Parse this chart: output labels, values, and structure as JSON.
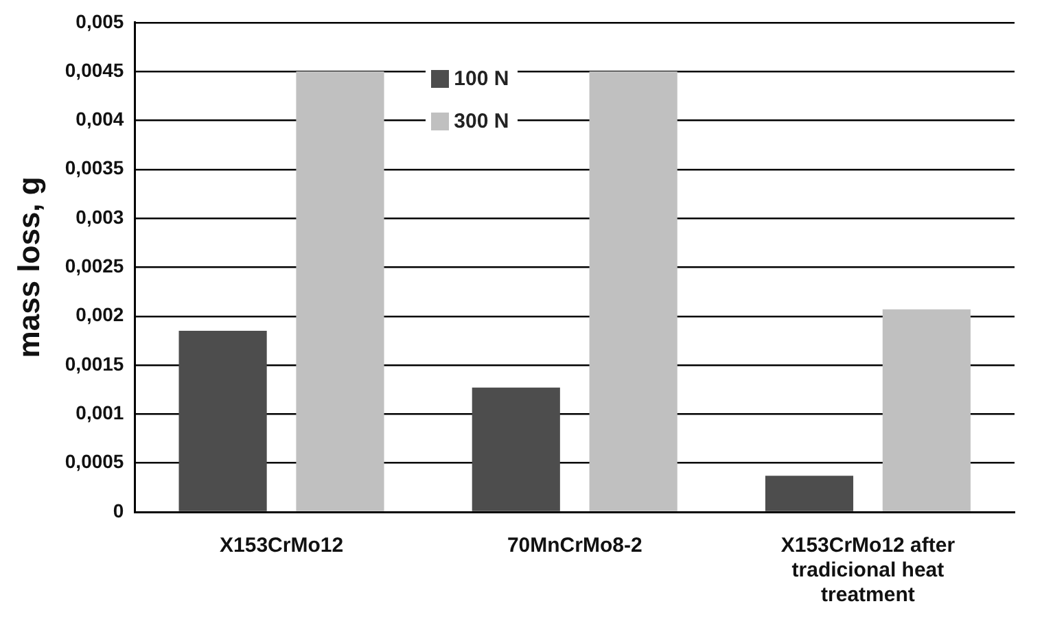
{
  "chart_data": {
    "type": "bar",
    "ylabel": "mass loss, g",
    "categories": [
      "X153CrMo12",
      "70MnCrMo8-2",
      "X153CrMo12 after tradicional heat treatment"
    ],
    "series": [
      {
        "name": "100 N",
        "color": "#4d4d4d",
        "values": [
          0.00185,
          0.00127,
          0.00037
        ]
      },
      {
        "name": "300 N",
        "color": "#c0c0c0",
        "values": [
          0.0045,
          0.0045,
          0.00207
        ]
      }
    ],
    "ylim": [
      0,
      0.005
    ],
    "yticks": [
      {
        "value": 0,
        "label": "0"
      },
      {
        "value": 0.0005,
        "label": "0,0005"
      },
      {
        "value": 0.001,
        "label": "0,001"
      },
      {
        "value": 0.0015,
        "label": "0,0015"
      },
      {
        "value": 0.002,
        "label": "0,002"
      },
      {
        "value": 0.0025,
        "label": "0,0025"
      },
      {
        "value": 0.003,
        "label": "0,003"
      },
      {
        "value": 0.0035,
        "label": "0,0035"
      },
      {
        "value": 0.004,
        "label": "0,004"
      },
      {
        "value": 0.0045,
        "label": "0,0045"
      },
      {
        "value": 0.005,
        "label": "0,005"
      }
    ],
    "grid": "y",
    "legend": "top"
  }
}
